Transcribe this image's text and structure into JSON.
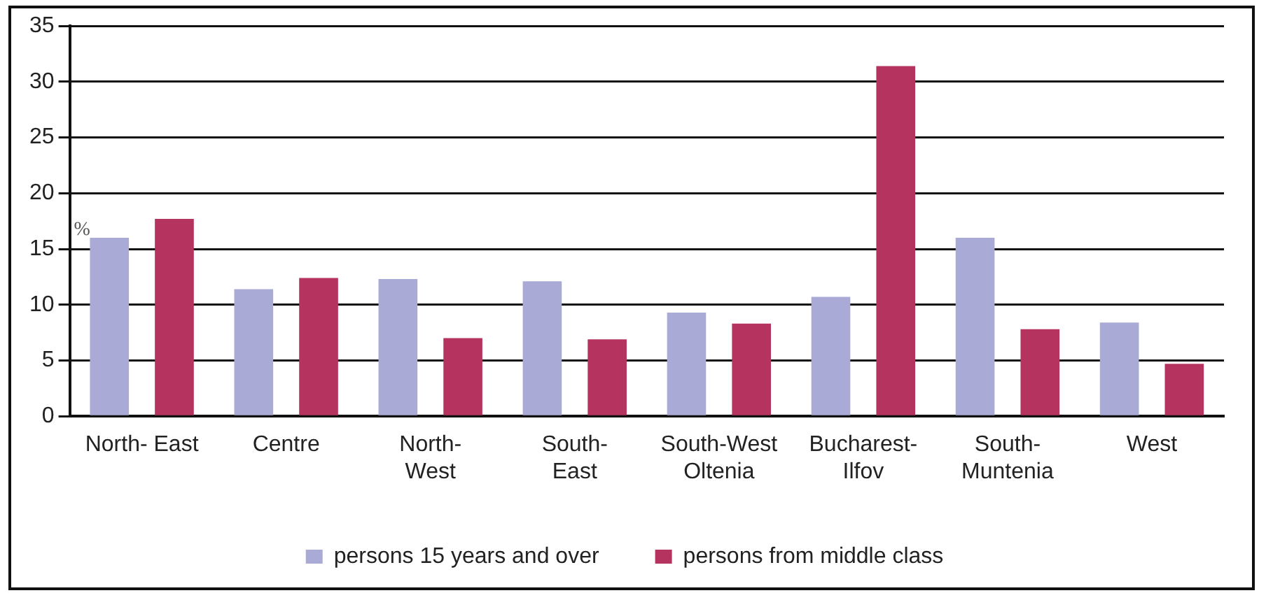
{
  "chart_data": {
    "type": "bar",
    "categories": [
      "North- East",
      "Centre",
      "North-\nWest",
      "South-\nEast",
      "South-West\nOltenia",
      "Bucharest-\nIlfov",
      "South-\nMuntenia",
      "West"
    ],
    "series": [
      {
        "name": "persons 15 years and over",
        "color": "#aaaad6",
        "values": [
          16.0,
          11.4,
          12.3,
          12.1,
          9.3,
          10.7,
          16.0,
          8.4
        ]
      },
      {
        "name": "persons from middle class",
        "color": "#b5335f",
        "values": [
          17.7,
          12.4,
          7.0,
          6.9,
          8.3,
          31.4,
          7.8,
          4.7
        ]
      }
    ],
    "ylim": [
      0,
      35
    ],
    "yticks": [
      0,
      5,
      10,
      15,
      20,
      25,
      30,
      35
    ],
    "grid": "y",
    "legend": "bottom",
    "annotations": [
      "%"
    ]
  }
}
